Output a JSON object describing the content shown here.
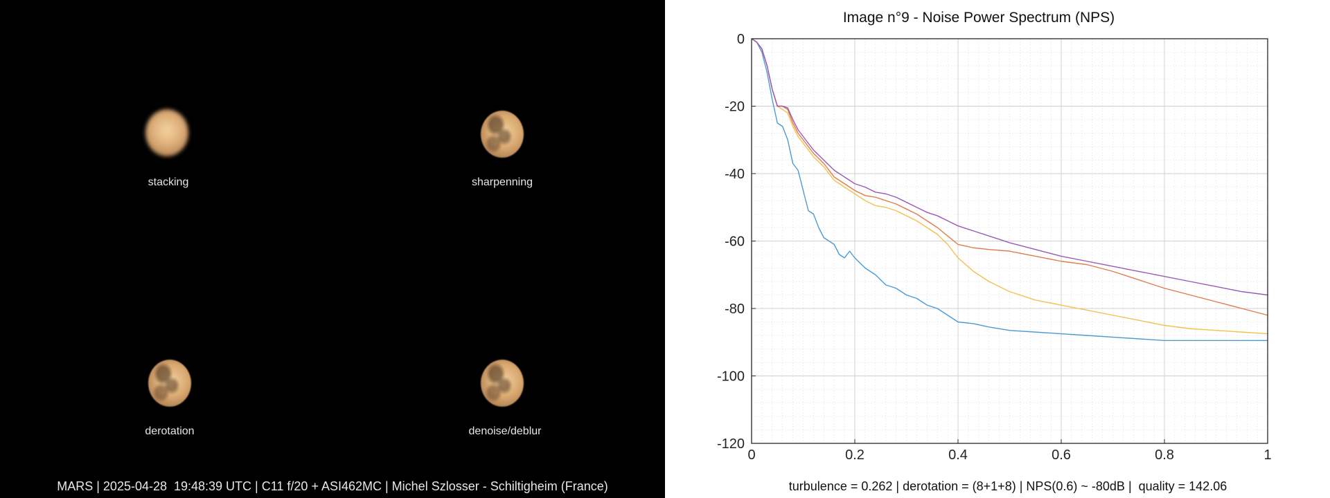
{
  "panels": [
    {
      "label": "stacking",
      "style": "blurry"
    },
    {
      "label": "sharpenning",
      "style": "sharp"
    },
    {
      "label": "derotation",
      "style": "sharp"
    },
    {
      "label": "denoise/deblur",
      "style": "sharp"
    }
  ],
  "footer_left": "MARS | 2025-04-28  19:48:39 UTC | C11 f/20 + ASI462MC | Michel Szlosser - Schiltigheim (France)",
  "footer_right": "turbulence = 0.262 | derotation = (8+1+8) | NPS(0.6) ~ -80dB |  quality = 142.06",
  "chart_data": {
    "type": "line",
    "title": "Image n°9 - Noise Power Spectrum (NPS)",
    "xlim": [
      0,
      1
    ],
    "ylim": [
      -120,
      0
    ],
    "xticks": [
      0,
      0.2,
      0.4,
      0.6,
      0.8,
      1
    ],
    "xtick_labels": [
      "0",
      "0.2",
      "0.4",
      "0.6",
      "0.8",
      "1"
    ],
    "yticks": [
      0,
      -20,
      -40,
      -60,
      -80,
      -100,
      -120
    ],
    "ytick_labels": [
      "0",
      "-20",
      "-40",
      "-60",
      "-80",
      "-100",
      "-120"
    ],
    "grid": true,
    "minor_grid": true,
    "series": [
      {
        "color": "#4a9ad4",
        "x": [
          0,
          0.01,
          0.02,
          0.03,
          0.04,
          0.05,
          0.06,
          0.07,
          0.08,
          0.09,
          0.1,
          0.11,
          0.12,
          0.13,
          0.14,
          0.15,
          0.16,
          0.17,
          0.18,
          0.19,
          0.2,
          0.22,
          0.24,
          0.26,
          0.28,
          0.3,
          0.32,
          0.34,
          0.36,
          0.38,
          0.4,
          0.43,
          0.46,
          0.5,
          0.55,
          0.6,
          0.65,
          0.7,
          0.75,
          0.8,
          0.85,
          0.9,
          0.95,
          1.0
        ],
        "y": [
          0,
          -1,
          -4,
          -10,
          -18,
          -25,
          -26,
          -30,
          -37,
          -39,
          -45,
          -51,
          -52,
          -56,
          -59,
          -60,
          -61,
          -64,
          -65,
          -63,
          -65,
          -68,
          -70,
          -73,
          -74,
          -76,
          -77,
          -79,
          -80,
          -82,
          -84,
          -84.5,
          -85.5,
          -86.5,
          -87,
          -87.5,
          -88,
          -88.5,
          -89,
          -89.5,
          -89.5,
          -89.5,
          -89.5,
          -89.5
        ]
      },
      {
        "color": "#f2c14e",
        "x": [
          0,
          0.01,
          0.02,
          0.03,
          0.04,
          0.05,
          0.06,
          0.07,
          0.08,
          0.09,
          0.1,
          0.12,
          0.14,
          0.16,
          0.18,
          0.2,
          0.22,
          0.24,
          0.26,
          0.28,
          0.3,
          0.32,
          0.34,
          0.36,
          0.38,
          0.4,
          0.43,
          0.46,
          0.5,
          0.55,
          0.6,
          0.65,
          0.7,
          0.75,
          0.8,
          0.85,
          0.9,
          0.95,
          1.0
        ],
        "y": [
          0,
          -1,
          -3,
          -8,
          -15,
          -20,
          -21,
          -22,
          -26,
          -29,
          -31,
          -35,
          -38,
          -42,
          -44,
          -46,
          -48,
          -49.5,
          -50,
          -51,
          -52.5,
          -54,
          -56,
          -58,
          -61,
          -65,
          -69,
          -72,
          -75,
          -77.5,
          -79,
          -80.5,
          -82,
          -83.5,
          -85,
          -86,
          -86.5,
          -87,
          -87.5
        ]
      },
      {
        "color": "#e07b4a",
        "x": [
          0,
          0.01,
          0.02,
          0.03,
          0.04,
          0.05,
          0.06,
          0.07,
          0.08,
          0.09,
          0.1,
          0.12,
          0.14,
          0.16,
          0.18,
          0.2,
          0.22,
          0.24,
          0.26,
          0.28,
          0.3,
          0.32,
          0.34,
          0.36,
          0.38,
          0.4,
          0.43,
          0.46,
          0.5,
          0.55,
          0.6,
          0.65,
          0.7,
          0.75,
          0.8,
          0.85,
          0.9,
          0.95,
          1.0
        ],
        "y": [
          0,
          -1,
          -3,
          -8,
          -15,
          -20,
          -20,
          -21,
          -25,
          -28,
          -30,
          -34,
          -37,
          -41,
          -43,
          -45,
          -46.5,
          -47,
          -48,
          -49,
          -50.5,
          -52,
          -54,
          -56,
          -58.5,
          -61,
          -62,
          -62.5,
          -63,
          -64.5,
          -66,
          -67,
          -69,
          -71.5,
          -74,
          -76,
          -78,
          -80,
          -82
        ]
      },
      {
        "color": "#9b59b6",
        "x": [
          0,
          0.01,
          0.02,
          0.03,
          0.04,
          0.05,
          0.06,
          0.07,
          0.08,
          0.09,
          0.1,
          0.12,
          0.14,
          0.16,
          0.18,
          0.2,
          0.22,
          0.24,
          0.26,
          0.28,
          0.3,
          0.32,
          0.34,
          0.36,
          0.38,
          0.4,
          0.43,
          0.46,
          0.5,
          0.55,
          0.6,
          0.65,
          0.7,
          0.75,
          0.8,
          0.85,
          0.9,
          0.95,
          1.0
        ],
        "y": [
          0,
          -1,
          -3,
          -8,
          -15,
          -20,
          -20,
          -20.5,
          -24,
          -27,
          -29,
          -33,
          -36,
          -39,
          -41,
          -43,
          -44,
          -45.5,
          -46,
          -47,
          -48.5,
          -50,
          -51.5,
          -52.5,
          -54,
          -55.5,
          -57,
          -58.5,
          -60.5,
          -62.5,
          -64.5,
          -66,
          -67.5,
          -69,
          -70.5,
          -72,
          -73.5,
          -75,
          -76
        ]
      }
    ]
  }
}
